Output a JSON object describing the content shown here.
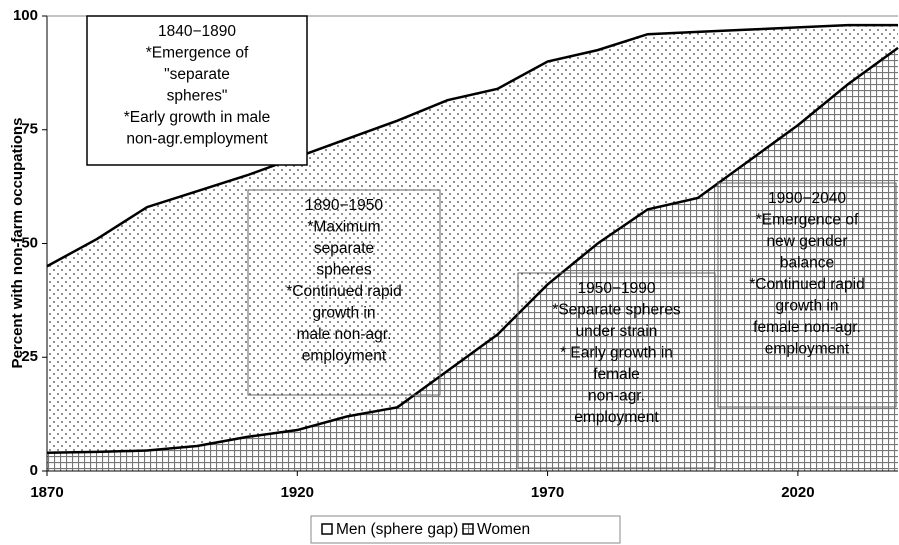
{
  "chart_data": {
    "type": "area",
    "y_label": "Percent with non-farm occupations",
    "x": [
      1870,
      1880,
      1890,
      1900,
      1910,
      1920,
      1930,
      1940,
      1950,
      1960,
      1970,
      1980,
      1990,
      2000,
      2010,
      2020,
      2030,
      2040
    ],
    "series": [
      {
        "name": "Men (sphere gap)",
        "color": "#000000",
        "values": [
          45,
          51,
          58,
          61.5,
          65,
          69,
          73,
          77,
          81.5,
          84,
          90,
          92.5,
          96,
          96.5,
          97,
          97.5,
          98,
          98
        ]
      },
      {
        "name": "Women",
        "color": "#000000",
        "values": [
          4,
          4.2,
          4.5,
          5.5,
          7.5,
          9,
          12,
          14,
          22,
          30,
          41,
          50,
          57.5,
          60,
          68,
          76,
          85,
          93
        ]
      }
    ],
    "xlim": [
      1870,
      2040
    ],
    "xticks": [
      1870,
      1920,
      1970,
      2020
    ],
    "ylim": [
      0,
      100
    ],
    "yticks": [
      0,
      25,
      50,
      75,
      100
    ],
    "legend": "bottom",
    "annotations": [
      {
        "lines": [
          "1840−1890",
          "*Emergence of",
          "\"separate",
          "spheres\"",
          "*Early growth in male",
          "non-agr.employment"
        ]
      },
      {
        "lines": [
          "1890−1950",
          "*Maximum",
          "separate",
          "spheres",
          "*Continued rapid",
          "growth in",
          "male non-agr.",
          "employment"
        ]
      },
      {
        "lines": [
          "1950−1990",
          "*Separate spheres",
          "under strain",
          "* Early growth in",
          "female",
          "non-agr.",
          "employment"
        ]
      },
      {
        "lines": [
          "1990−2040",
          "*Emergence of",
          "new gender",
          "balance",
          "*Continued rapid",
          "growth in",
          "female non-agr.",
          "employment"
        ]
      }
    ]
  }
}
